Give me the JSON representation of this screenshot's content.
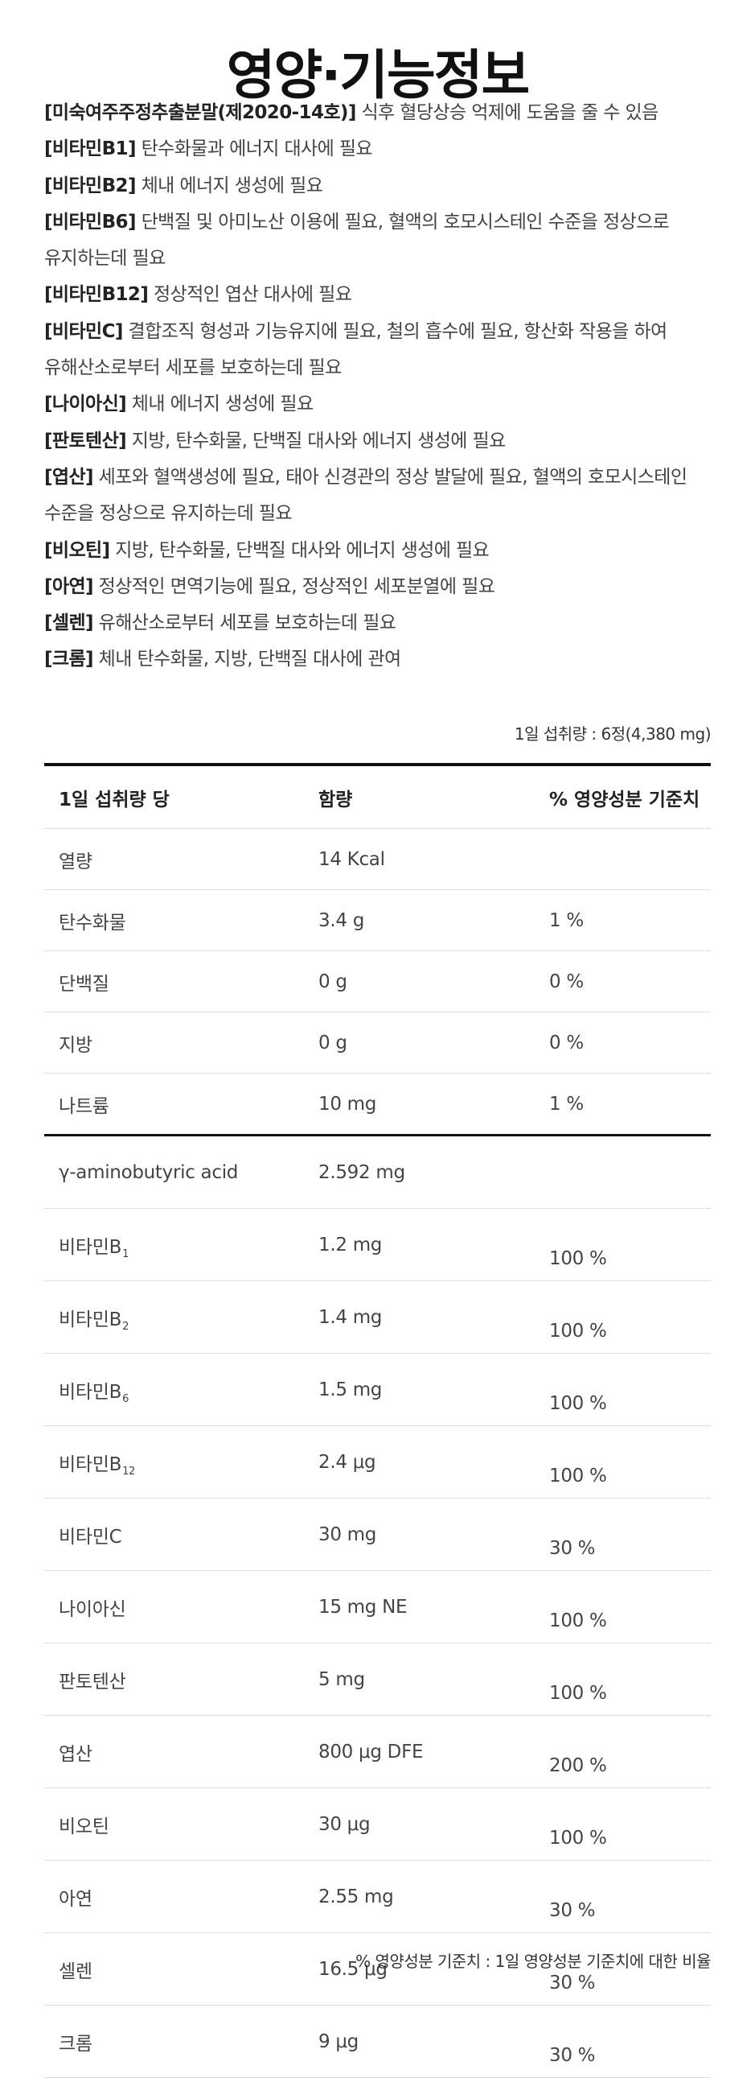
{
  "title": "영양·기능정보",
  "functional": [
    {
      "name": "[미숙여주주정추출분말(제2020-14호)]",
      "desc": " 식후 혈당상승 억제에 도움을 줄 수 있음"
    },
    {
      "name": "[비타민B",
      "sub": "1",
      "name_end": "]",
      "desc": " 탄수화물과 에너지 대사에 필요"
    },
    {
      "name": "[비타민B",
      "sub": "2",
      "name_end": "]",
      "desc": " 체내 에너지 생성에 필요"
    },
    {
      "name": "[비타민B",
      "sub": "6",
      "name_end": "]",
      "desc": " 단백질 및 아미노산 이용에 필요, 혈액의 호모시스테인 수준을 정상으로"
    },
    {
      "desc": "유지하는데 필요"
    },
    {
      "name": "[비타민B",
      "sub": "12",
      "name_end": "]",
      "desc": " 정상적인 엽산 대사에 필요"
    },
    {
      "name": "[비타민C]",
      "desc": " 결합조직 형성과 기능유지에 필요, 철의 흡수에 필요, 항산화 작용을 하여"
    },
    {
      "desc": "유해산소로부터 세포를 보호하는데 필요"
    },
    {
      "name": "[나이아신]",
      "desc": " 체내 에너지 생성에 필요"
    },
    {
      "name": "[판토텐산]",
      "desc": " 지방, 탄수화물, 단백질 대사와 에너지 생성에 필요"
    },
    {
      "name": "[엽산]",
      "desc": " 세포와 혈액생성에 필요, 태아 신경관의 정상 발달에 필요, 혈액의 호모시스테인"
    },
    {
      "desc": "수준을 정상으로 유지하는데 필요"
    },
    {
      "name": "[비오틴]",
      "desc": " 지방, 탄수화물, 단백질 대사와 에너지 생성에 필요"
    },
    {
      "name": "[아연]",
      "desc": " 정상적인 면역기능에 필요, 정상적인 세포분열에 필요"
    },
    {
      "name": "[셀렌]",
      "desc": " 유해산소로부터 세포를 보호하는데 필요"
    },
    {
      "name": "[크롬]",
      "desc": " 체내 탄수화물, 지방, 단백질 대사에 관여"
    }
  ],
  "serving": "1일 섭취량 : 6정(4,380 mg)",
  "table": {
    "headers": [
      "1일 섭취량 당",
      "함량",
      "% 영양성분 기준치"
    ],
    "basic_rows": [
      {
        "name": "열량",
        "amount": "14 Kcal",
        "dv": ""
      },
      {
        "name": "탄수화물",
        "amount": "3.4 g",
        "dv": "1 %"
      },
      {
        "name": "단백질",
        "amount": "0 g",
        "dv": "0 %"
      },
      {
        "name": "지방",
        "amount": "0 g",
        "dv": "0 %"
      },
      {
        "name": "나트륨",
        "amount": "10 mg",
        "dv": "1 %"
      }
    ],
    "other_rows": [
      {
        "name": "γ-aminobutyric acid",
        "amount": "2.592 mg",
        "dv": ""
      },
      {
        "name": "비타민B",
        "sub": "1",
        "amount": "1.2 mg",
        "dv": "100 %"
      },
      {
        "name": "비타민B",
        "sub": "2",
        "amount": "1.4 mg",
        "dv": "100 %"
      },
      {
        "name": "비타민B",
        "sub": "6",
        "amount": "1.5 mg",
        "dv": "100 %"
      },
      {
        "name": "비타민B",
        "sub": "12",
        "amount": "2.4 μg",
        "dv": "100 %"
      },
      {
        "name": "비타민C",
        "amount": "30 mg",
        "dv": "30 %"
      },
      {
        "name": "나이아신",
        "amount": "15 mg NE",
        "dv": "100 %"
      },
      {
        "name": "판토텐산",
        "amount": "5 mg",
        "dv": "100 %"
      },
      {
        "name": "엽산",
        "amount": "800 μg DFE",
        "dv": "200 %"
      },
      {
        "name": "비오틴",
        "amount": "30 μg",
        "dv": "100 %"
      },
      {
        "name": "아연",
        "amount": "2.55 mg",
        "dv": "30 %"
      },
      {
        "name": "셀렌",
        "amount": "16.5 μg",
        "dv": "30 %"
      },
      {
        "name": "크롬",
        "amount": "9 μg",
        "dv": "30 %"
      }
    ]
  },
  "footnote": "% 영양성분 기준치 : 1일 영양성분 기준치에 대한 비율"
}
